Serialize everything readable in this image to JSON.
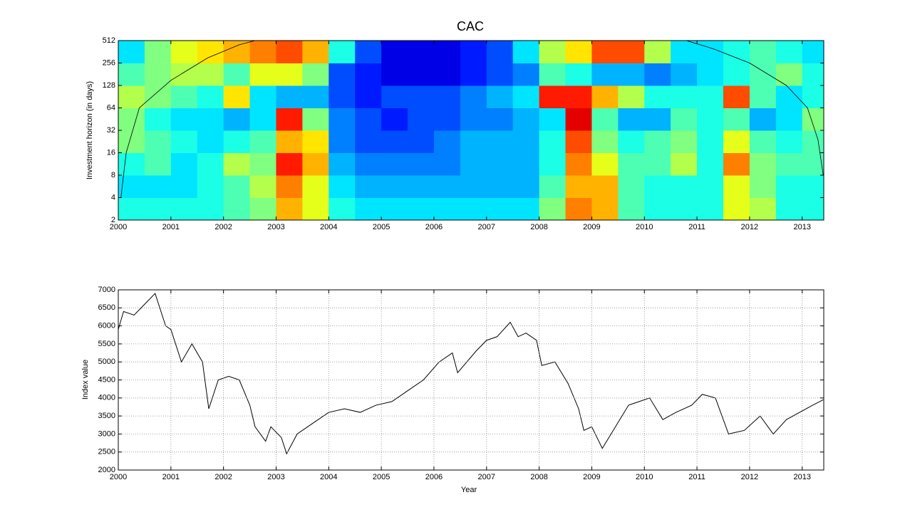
{
  "chart_data": [
    {
      "type": "heatmap",
      "title": "CAC",
      "ylabel": "Investment horizon (in days)",
      "xlim": [
        2000,
        2013.41
      ],
      "xticks": [
        2000,
        2001,
        2002,
        2003,
        2004,
        2005,
        2006,
        2007,
        2008,
        2009,
        2010,
        2011,
        2012,
        2013
      ],
      "ylim": [
        2,
        512
      ],
      "yticks": [
        2,
        4,
        8,
        16,
        32,
        64,
        128,
        256,
        512
      ],
      "log_y": true,
      "colormap": "jet",
      "x_edges": [
        2000,
        2000.5,
        2001,
        2001.5,
        2002,
        2002.5,
        2003,
        2003.5,
        2004,
        2004.5,
        2005,
        2005.5,
        2006,
        2006.5,
        2007,
        2007.5,
        2008,
        2008.5,
        2009,
        2009.5,
        2010,
        2010.5,
        2011,
        2011.5,
        2012,
        2012.5,
        2013,
        2013.41
      ],
      "y_edges": [
        2,
        4,
        8,
        16,
        32,
        64,
        128,
        256,
        512
      ],
      "z": [
        [
          0.4,
          0.4,
          0.4,
          0.4,
          0.45,
          0.5,
          0.7,
          0.6,
          0.4,
          0.35,
          0.35,
          0.35,
          0.35,
          0.35,
          0.35,
          0.35,
          0.5,
          0.75,
          0.7,
          0.45,
          0.4,
          0.4,
          0.4,
          0.6,
          0.55,
          0.4,
          0.4
        ],
        [
          0.35,
          0.35,
          0.35,
          0.4,
          0.45,
          0.55,
          0.75,
          0.6,
          0.35,
          0.3,
          0.3,
          0.3,
          0.3,
          0.3,
          0.3,
          0.3,
          0.45,
          0.7,
          0.7,
          0.45,
          0.4,
          0.4,
          0.4,
          0.6,
          0.5,
          0.4,
          0.4
        ],
        [
          0.4,
          0.45,
          0.35,
          0.4,
          0.55,
          0.5,
          0.85,
          0.7,
          0.3,
          0.25,
          0.25,
          0.25,
          0.25,
          0.3,
          0.3,
          0.3,
          0.4,
          0.75,
          0.6,
          0.45,
          0.45,
          0.55,
          0.4,
          0.75,
          0.5,
          0.45,
          0.45
        ],
        [
          0.5,
          0.45,
          0.4,
          0.35,
          0.4,
          0.45,
          0.7,
          0.65,
          0.25,
          0.2,
          0.2,
          0.2,
          0.25,
          0.3,
          0.3,
          0.3,
          0.4,
          0.8,
          0.5,
          0.4,
          0.45,
          0.5,
          0.4,
          0.6,
          0.45,
          0.4,
          0.45
        ],
        [
          0.5,
          0.4,
          0.35,
          0.35,
          0.3,
          0.35,
          0.85,
          0.5,
          0.25,
          0.2,
          0.15,
          0.2,
          0.2,
          0.25,
          0.25,
          0.3,
          0.35,
          0.9,
          0.45,
          0.3,
          0.3,
          0.45,
          0.4,
          0.45,
          0.3,
          0.35,
          0.5
        ],
        [
          0.55,
          0.5,
          0.45,
          0.4,
          0.65,
          0.35,
          0.3,
          0.3,
          0.2,
          0.15,
          0.2,
          0.2,
          0.2,
          0.25,
          0.3,
          0.35,
          0.85,
          0.85,
          0.7,
          0.55,
          0.4,
          0.4,
          0.4,
          0.8,
          0.45,
          0.35,
          0.4
        ],
        [
          0.45,
          0.5,
          0.55,
          0.55,
          0.45,
          0.6,
          0.6,
          0.5,
          0.2,
          0.15,
          0.1,
          0.1,
          0.1,
          0.15,
          0.2,
          0.25,
          0.45,
          0.4,
          0.3,
          0.3,
          0.25,
          0.3,
          0.35,
          0.4,
          0.45,
          0.5,
          0.4
        ],
        [
          0.35,
          0.5,
          0.6,
          0.65,
          0.7,
          0.75,
          0.8,
          0.7,
          0.4,
          0.2,
          0.1,
          0.1,
          0.1,
          0.15,
          0.2,
          0.35,
          0.55,
          0.65,
          0.8,
          0.8,
          0.55,
          0.35,
          0.35,
          0.4,
          0.45,
          0.4,
          0.35
        ]
      ],
      "cone": {
        "color": "#000000",
        "x": [
          2000.05,
          2000.15,
          2000.4,
          2001,
          2001.7,
          2002.3,
          2002.6,
          2010.8,
          2011.3,
          2012,
          2012.7,
          2013.1,
          2013.3,
          2013.4
        ],
        "y": [
          4,
          16,
          64,
          150,
          300,
          450,
          512,
          512,
          400,
          256,
          128,
          64,
          24,
          8
        ]
      }
    },
    {
      "type": "line",
      "xlabel": "Year",
      "ylabel": "Index value",
      "color": "#000000",
      "grid": true,
      "xlim": [
        2000,
        2013.41
      ],
      "xticks": [
        2000,
        2001,
        2002,
        2003,
        2004,
        2005,
        2006,
        2007,
        2008,
        2009,
        2010,
        2011,
        2012,
        2013
      ],
      "ylim": [
        2000,
        7000
      ],
      "yticks": [
        2000,
        2500,
        3000,
        3500,
        4000,
        4500,
        5000,
        5500,
        6000,
        6500,
        7000
      ],
      "x": [
        2000.0,
        2000.1,
        2000.3,
        2000.5,
        2000.7,
        2000.9,
        2001.0,
        2001.2,
        2001.4,
        2001.6,
        2001.72,
        2001.9,
        2002.1,
        2002.3,
        2002.5,
        2002.6,
        2002.8,
        2002.9,
        2003.1,
        2003.2,
        2003.4,
        2003.7,
        2004.0,
        2004.3,
        2004.6,
        2004.9,
        2005.2,
        2005.5,
        2005.8,
        2006.1,
        2006.35,
        2006.45,
        2006.8,
        2007.0,
        2007.2,
        2007.45,
        2007.6,
        2007.75,
        2007.95,
        2008.05,
        2008.3,
        2008.55,
        2008.75,
        2008.85,
        2009.0,
        2009.2,
        2009.45,
        2009.7,
        2009.9,
        2010.1,
        2010.35,
        2010.6,
        2010.9,
        2011.1,
        2011.35,
        2011.6,
        2011.9,
        2012.2,
        2012.45,
        2012.7,
        2012.95,
        2013.2,
        2013.4
      ],
      "values": [
        5900,
        6400,
        6300,
        6600,
        6900,
        6000,
        5900,
        5000,
        5500,
        5000,
        3700,
        4500,
        4600,
        4500,
        3800,
        3200,
        2800,
        3200,
        2900,
        2450,
        3000,
        3300,
        3600,
        3700,
        3600,
        3800,
        3900,
        4200,
        4500,
        5000,
        5250,
        4700,
        5300,
        5600,
        5700,
        6100,
        5700,
        5800,
        5600,
        4900,
        5000,
        4400,
        3700,
        3100,
        3200,
        2600,
        3200,
        3800,
        3900,
        4000,
        3400,
        3600,
        3800,
        4100,
        4000,
        3000,
        3100,
        3500,
        3000,
        3400,
        3600,
        3800,
        3950
      ]
    }
  ]
}
